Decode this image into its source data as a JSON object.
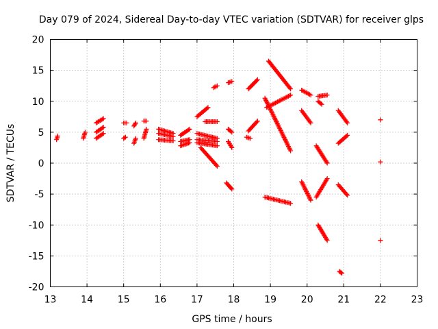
{
  "chart_data": {
    "type": "scatter",
    "title": "Day 079 of 2024, Sidereal Day-to-day VTEC variation (SDTVAR) for receiver glps",
    "xlabel": "GPS time / hours",
    "ylabel": "SDTVAR / TECUs",
    "xlim": [
      13,
      23
    ],
    "ylim": [
      -20,
      20
    ],
    "xticks": [
      13,
      14,
      15,
      16,
      17,
      18,
      19,
      20,
      21,
      22,
      23
    ],
    "yticks": [
      -20,
      -15,
      -10,
      -5,
      0,
      5,
      10,
      15,
      20
    ],
    "grid": true,
    "marker": "+",
    "color": "#ff0000",
    "tracks": [
      {
        "x0": 13.17,
        "x1": 13.2,
        "y0": 3.8,
        "y1": 4.4
      },
      {
        "x0": 13.9,
        "x1": 13.95,
        "y0": 4.0,
        "y1": 5.0
      },
      {
        "x0": 14.25,
        "x1": 14.45,
        "y0": 6.5,
        "y1": 7.2
      },
      {
        "x0": 14.25,
        "x1": 14.45,
        "y0": 5.0,
        "y1": 5.8
      },
      {
        "x0": 14.25,
        "x1": 14.45,
        "y0": 4.0,
        "y1": 4.8
      },
      {
        "x0": 15.0,
        "x1": 15.08,
        "y0": 6.5,
        "y1": 6.5
      },
      {
        "x0": 15.0,
        "x1": 15.05,
        "y0": 4.0,
        "y1": 4.2
      },
      {
        "x0": 15.28,
        "x1": 15.33,
        "y0": 6.0,
        "y1": 6.5
      },
      {
        "x0": 15.28,
        "x1": 15.33,
        "y0": 3.2,
        "y1": 4.0
      },
      {
        "x0": 15.55,
        "x1": 15.62,
        "y0": 6.8,
        "y1": 6.8
      },
      {
        "x0": 15.55,
        "x1": 15.62,
        "y0": 4.0,
        "y1": 5.5
      },
      {
        "x0": 15.95,
        "x1": 16.35,
        "y0": 5.5,
        "y1": 4.8
      },
      {
        "x0": 15.95,
        "x1": 16.35,
        "y0": 4.8,
        "y1": 4.3
      },
      {
        "x0": 15.95,
        "x1": 16.35,
        "y0": 3.8,
        "y1": 3.6
      },
      {
        "x0": 16.55,
        "x1": 16.8,
        "y0": 4.5,
        "y1": 5.5
      },
      {
        "x0": 16.55,
        "x1": 16.8,
        "y0": 3.5,
        "y1": 3.8
      },
      {
        "x0": 16.55,
        "x1": 16.8,
        "y0": 2.8,
        "y1": 3.3
      },
      {
        "x0": 17.0,
        "x1": 17.3,
        "y0": 7.5,
        "y1": 9.0
      },
      {
        "x0": 17.22,
        "x1": 17.55,
        "y0": 6.7,
        "y1": 6.7
      },
      {
        "x0": 17.0,
        "x1": 17.55,
        "y0": 4.8,
        "y1": 4.0
      },
      {
        "x0": 17.0,
        "x1": 17.55,
        "y0": 3.8,
        "y1": 3.5
      },
      {
        "x0": 17.0,
        "x1": 17.55,
        "y0": 3.3,
        "y1": 2.8
      },
      {
        "x0": 17.1,
        "x1": 17.55,
        "y0": 2.5,
        "y1": -0.5
      },
      {
        "x0": 17.45,
        "x1": 17.55,
        "y0": 12.2,
        "y1": 12.5
      },
      {
        "x0": 17.8,
        "x1": 17.95,
        "y0": -3.2,
        "y1": -4.2
      },
      {
        "x0": 17.85,
        "x1": 17.95,
        "y0": 13.0,
        "y1": 13.2
      },
      {
        "x0": 17.85,
        "x1": 17.95,
        "y0": 5.5,
        "y1": 5.0
      },
      {
        "x0": 17.85,
        "x1": 17.95,
        "y0": 3.5,
        "y1": 2.5
      },
      {
        "x0": 18.35,
        "x1": 18.45,
        "y0": 4.2,
        "y1": 4.0
      },
      {
        "x0": 18.4,
        "x1": 18.65,
        "y0": 5.2,
        "y1": 6.8
      },
      {
        "x0": 18.4,
        "x1": 18.65,
        "y0": 12.0,
        "y1": 13.5
      },
      {
        "x0": 18.85,
        "x1": 19.55,
        "y0": 10.5,
        "y1": 2.0
      },
      {
        "x0": 18.9,
        "x1": 19.55,
        "y0": 9.0,
        "y1": 11.0
      },
      {
        "x0": 18.95,
        "x1": 19.55,
        "y0": 16.5,
        "y1": 12.0
      },
      {
        "x0": 18.85,
        "x1": 19.55,
        "y0": -5.5,
        "y1": -6.5
      },
      {
        "x0": 19.85,
        "x1": 20.1,
        "y0": 11.8,
        "y1": 11.0
      },
      {
        "x0": 19.85,
        "x1": 20.1,
        "y0": 8.5,
        "y1": 6.5
      },
      {
        "x0": 19.85,
        "x1": 20.1,
        "y0": -3.0,
        "y1": -6.0
      },
      {
        "x0": 20.25,
        "x1": 20.55,
        "y0": 2.8,
        "y1": 0.0
      },
      {
        "x0": 20.25,
        "x1": 20.55,
        "y0": -5.5,
        "y1": -2.5
      },
      {
        "x0": 20.3,
        "x1": 20.55,
        "y0": 10.8,
        "y1": 11.0
      },
      {
        "x0": 20.3,
        "x1": 20.4,
        "y0": 10.0,
        "y1": 9.5
      },
      {
        "x0": 20.3,
        "x1": 20.55,
        "y0": -10.0,
        "y1": -12.5
      },
      {
        "x0": 20.85,
        "x1": 21.1,
        "y0": 8.5,
        "y1": 6.5
      },
      {
        "x0": 20.85,
        "x1": 21.1,
        "y0": 3.2,
        "y1": 4.5
      },
      {
        "x0": 20.85,
        "x1": 21.1,
        "y0": -3.5,
        "y1": -5.2
      },
      {
        "x0": 20.88,
        "x1": 20.95,
        "y0": -17.5,
        "y1": -17.8
      },
      {
        "x0": 22.0,
        "x1": 22.0,
        "y0": 7.0,
        "y1": 7.0
      },
      {
        "x0": 22.0,
        "x1": 22.0,
        "y0": 0.2,
        "y1": 0.2
      },
      {
        "x0": 22.0,
        "x1": 22.0,
        "y0": -12.5,
        "y1": -12.5
      }
    ]
  }
}
